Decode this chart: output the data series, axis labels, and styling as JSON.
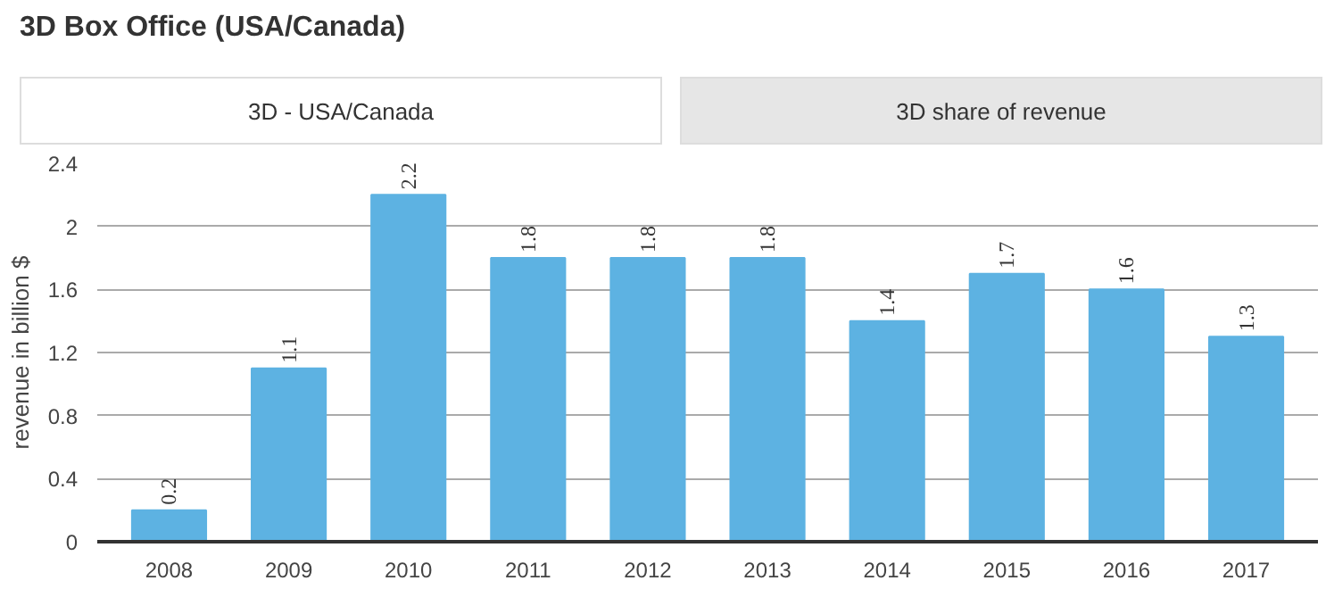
{
  "chart_data": {
    "type": "bar",
    "title": "3D Box Office (USA/Canada)",
    "annotations": [
      "3D - USA/Canada",
      "3D share of revenue"
    ],
    "ylabel": "revenue in billion $",
    "categories": [
      "2008",
      "2009",
      "2010",
      "2011",
      "2012",
      "2013",
      "2014",
      "2015",
      "2016",
      "2017"
    ],
    "values": [
      0.2,
      1.1,
      2.2,
      1.8,
      1.8,
      1.8,
      1.4,
      1.7,
      1.6,
      1.3
    ],
    "color": "#5db2e2",
    "ylim": [
      0,
      2.4
    ],
    "yticks": [
      0,
      0.4,
      0.8,
      1.2,
      1.6,
      2,
      2.4
    ],
    "grid": "y",
    "data_labels": true
  }
}
